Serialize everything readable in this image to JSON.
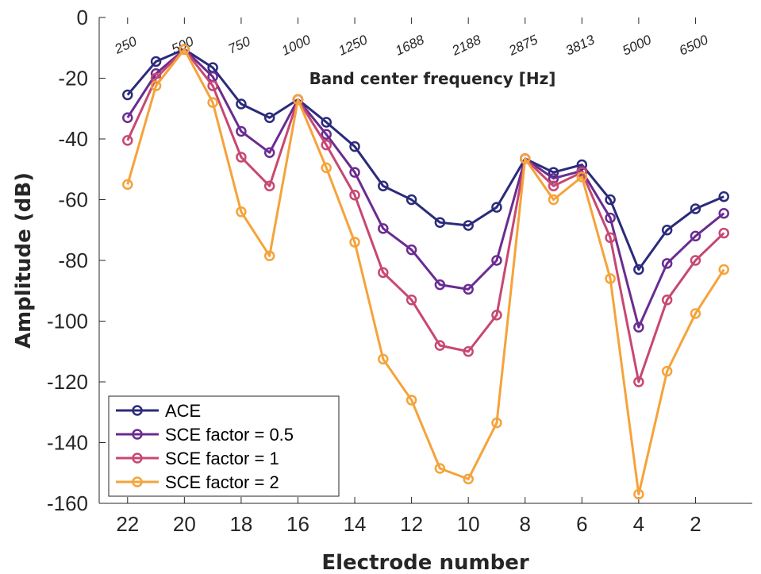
{
  "chart_data": {
    "type": "line",
    "xlabel": "Electrode number",
    "ylabel": "Amplitude (dB)",
    "top_axis_label": "Band center frequency [Hz]",
    "xlim": [
      23,
      0
    ],
    "ylim": [
      -160,
      0
    ],
    "x_ticks": [
      22,
      20,
      18,
      16,
      14,
      12,
      10,
      8,
      6,
      4,
      2
    ],
    "y_ticks": [
      0,
      -20,
      -40,
      -60,
      -80,
      -100,
      -120,
      -140,
      -160
    ],
    "top_ticks": [
      {
        "x": 22,
        "label": "250"
      },
      {
        "x": 20,
        "label": "500"
      },
      {
        "x": 18,
        "label": "750"
      },
      {
        "x": 16,
        "label": "1000"
      },
      {
        "x": 14,
        "label": "1250"
      },
      {
        "x": 12,
        "label": "1688"
      },
      {
        "x": 10,
        "label": "2188"
      },
      {
        "x": 8,
        "label": "2875"
      },
      {
        "x": 6,
        "label": "3813"
      },
      {
        "x": 4,
        "label": "5000"
      },
      {
        "x": 2,
        "label": "6500"
      }
    ],
    "x": [
      22,
      21,
      20,
      19,
      18,
      17,
      16,
      15,
      14,
      13,
      12,
      11,
      10,
      9,
      8,
      7,
      6,
      5,
      4,
      3,
      2,
      1
    ],
    "series": [
      {
        "name": "ACE",
        "color": "#2b2b7b",
        "values": [
          -25.5,
          -14.5,
          -10.5,
          -16.5,
          -28.5,
          -33,
          -27,
          -34.5,
          -42.5,
          -55.5,
          -60,
          -67.5,
          -68.5,
          -62.5,
          -46.5,
          -51,
          -48.5,
          -60,
          -83,
          -70,
          -63,
          -59
        ]
      },
      {
        "name": "SCE factor = 0.5",
        "color": "#6a2c91",
        "values": [
          -33,
          -18.5,
          -10.5,
          -19.5,
          -37.5,
          -44.5,
          -27,
          -38.5,
          -51,
          -69.5,
          -76.5,
          -88,
          -89.5,
          -80,
          -46.5,
          -53,
          -50.5,
          -66,
          -102,
          -81,
          -72,
          -64.5
        ]
      },
      {
        "name": "SCE factor = 1",
        "color": "#c74872",
        "values": [
          -40.5,
          -20,
          -10.5,
          -22.5,
          -46,
          -55.5,
          -27,
          -42,
          -58.5,
          -84,
          -93,
          -108,
          -110,
          -98,
          -46.5,
          -55.5,
          -51,
          -72.5,
          -120,
          -93,
          -80,
          -71
        ]
      },
      {
        "name": "SCE factor = 2",
        "color": "#f5a33a",
        "values": [
          -55,
          -22.5,
          -10.5,
          -28,
          -64,
          -78.5,
          -27,
          -49.5,
          -74,
          -112.5,
          -126,
          -148.5,
          -152,
          -133.5,
          -46.5,
          -60,
          -52.5,
          -86,
          -157,
          -116.5,
          -97.5,
          -83
        ]
      }
    ],
    "legend_position": "bottom-left",
    "grid": false
  }
}
